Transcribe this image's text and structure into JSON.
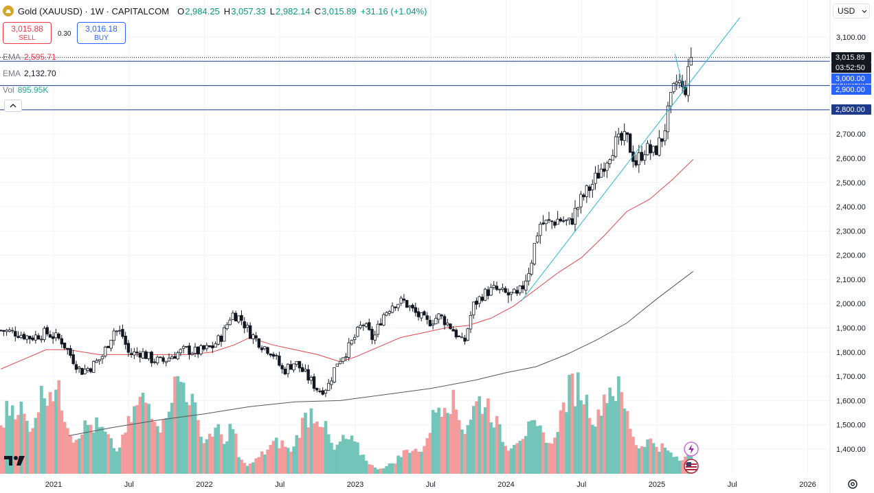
{
  "header": {
    "symbol": "Gold (XAUUSD) · 1W · CAPITALCOM",
    "open_label": "O",
    "open": "2,984.25",
    "high_label": "H",
    "high": "3,057.33",
    "low_label": "L",
    "low": "2,982.14",
    "close_label": "C",
    "close": "3,015.89",
    "change": "+31.16 (+1.04%)"
  },
  "trade": {
    "sell_price": "3,015.88",
    "sell_label": "SELL",
    "spread": "0.30",
    "buy_price": "3,016.18",
    "buy_label": "BUY"
  },
  "indicators": [
    {
      "name": "EMA",
      "value": "2,595.71",
      "color": "#f23645"
    },
    {
      "name": "EMA",
      "value": "2,132.70",
      "color": "#131722"
    },
    {
      "name": "Vol",
      "value": "895.95K",
      "color": "#22ab94"
    }
  ],
  "currency": {
    "label": "USD"
  },
  "price_tags": [
    {
      "text": "3,015.89",
      "bg": "#131722"
    },
    {
      "text": "03:52:50",
      "bg": "#131722"
    },
    {
      "text": "3,000.00",
      "bg": "#2962ff"
    },
    {
      "text": "2,900.00",
      "bg": "#2962ff"
    },
    {
      "text": "2,800.00",
      "bg": "#1e3a8a"
    }
  ],
  "colors": {
    "up": "#131722",
    "down": "#131722",
    "ema_fast": "#e0454b",
    "ema_slow": "#555555",
    "vol_up": "#72c5b8",
    "vol_down": "#f49b9b",
    "trendline": "#29b6d6",
    "hline": "#1e3a8a"
  },
  "chart_data": {
    "type": "candlestick",
    "title": "Gold (XAUUSD) · 1W · CAPITALCOM",
    "y_axis_ticks": [
      "3,100.00",
      "3,000.00",
      "2,900.00",
      "2,800.00",
      "2,700.00",
      "2,600.00",
      "2,500.00",
      "2,400.00",
      "2,300.00",
      "2,200.00",
      "2,100.00",
      "2,000.00",
      "1,900.00",
      "1,800.00",
      "1,700.00",
      "1,600.00",
      "1,500.00",
      "1,400.00"
    ],
    "y_tick_values": [
      3100,
      3000,
      2900,
      2800,
      2700,
      2600,
      2500,
      2400,
      2300,
      2200,
      2100,
      2000,
      1900,
      1800,
      1700,
      1600,
      1500,
      1400
    ],
    "x_axis_ticks": [
      "2021",
      "Jul",
      "2022",
      "Jul",
      "2023",
      "Jul",
      "2024",
      "Jul",
      "2025",
      "Jul",
      "2026"
    ],
    "x_tick_years": [
      2021.0,
      2021.5,
      2022.0,
      2022.5,
      2023.0,
      2023.5,
      2024.0,
      2024.5,
      2025.0,
      2025.5,
      2026.0
    ],
    "ylim": [
      1380,
      3120
    ],
    "xlim": [
      2020.65,
      2026.4
    ],
    "horizontal_levels": [
      2800,
      2900,
      3000
    ],
    "current_price": 3015.89,
    "price_path": [
      [
        2020.65,
        1890
      ],
      [
        2020.75,
        1880
      ],
      [
        2020.85,
        1860
      ],
      [
        2020.95,
        1880
      ],
      [
        2021.05,
        1850
      ],
      [
        2021.12,
        1780
      ],
      [
        2021.18,
        1720
      ],
      [
        2021.25,
        1740
      ],
      [
        2021.32,
        1780
      ],
      [
        2021.4,
        1890
      ],
      [
        2021.45,
        1880
      ],
      [
        2021.5,
        1790
      ],
      [
        2021.58,
        1800
      ],
      [
        2021.65,
        1770
      ],
      [
        2021.72,
        1760
      ],
      [
        2021.8,
        1790
      ],
      [
        2021.88,
        1810
      ],
      [
        2021.95,
        1800
      ],
      [
        2022.05,
        1820
      ],
      [
        2022.12,
        1870
      ],
      [
        2022.18,
        1960
      ],
      [
        2022.24,
        1940
      ],
      [
        2022.3,
        1880
      ],
      [
        2022.38,
        1830
      ],
      [
        2022.45,
        1800
      ],
      [
        2022.52,
        1720
      ],
      [
        2022.6,
        1760
      ],
      [
        2022.68,
        1700
      ],
      [
        2022.76,
        1640
      ],
      [
        2022.82,
        1660
      ],
      [
        2022.88,
        1760
      ],
      [
        2022.95,
        1810
      ],
      [
        2023.05,
        1920
      ],
      [
        2023.12,
        1850
      ],
      [
        2023.18,
        1950
      ],
      [
        2023.25,
        2000
      ],
      [
        2023.32,
        2010
      ],
      [
        2023.4,
        1960
      ],
      [
        2023.48,
        1920
      ],
      [
        2023.56,
        1950
      ],
      [
        2023.64,
        1900
      ],
      [
        2023.72,
        1830
      ],
      [
        2023.78,
        1990
      ],
      [
        2023.85,
        2040
      ],
      [
        2023.92,
        2060
      ],
      [
        2024.0,
        2040
      ],
      [
        2024.08,
        2020
      ],
      [
        2024.16,
        2160
      ],
      [
        2024.22,
        2330
      ],
      [
        2024.28,
        2330
      ],
      [
        2024.35,
        2350
      ],
      [
        2024.42,
        2330
      ],
      [
        2024.5,
        2430
      ],
      [
        2024.58,
        2500
      ],
      [
        2024.65,
        2580
      ],
      [
        2024.72,
        2660
      ],
      [
        2024.8,
        2680
      ],
      [
        2024.86,
        2580
      ],
      [
        2024.92,
        2640
      ],
      [
        2024.98,
        2620
      ],
      [
        2025.04,
        2690
      ],
      [
        2025.1,
        2860
      ],
      [
        2025.14,
        2930
      ],
      [
        2025.18,
        2860
      ],
      [
        2025.22,
        2990
      ],
      [
        2025.24,
        3016
      ]
    ],
    "ema_fast_path": [
      [
        2020.65,
        1730
      ],
      [
        2020.8,
        1770
      ],
      [
        2020.95,
        1810
      ],
      [
        2021.1,
        1810
      ],
      [
        2021.3,
        1790
      ],
      [
        2021.5,
        1790
      ],
      [
        2021.7,
        1790
      ],
      [
        2021.9,
        1790
      ],
      [
        2022.05,
        1800
      ],
      [
        2022.2,
        1830
      ],
      [
        2022.3,
        1860
      ],
      [
        2022.45,
        1830
      ],
      [
        2022.6,
        1810
      ],
      [
        2022.75,
        1790
      ],
      [
        2022.9,
        1760
      ],
      [
        2023.0,
        1780
      ],
      [
        2023.15,
        1820
      ],
      [
        2023.3,
        1860
      ],
      [
        2023.45,
        1880
      ],
      [
        2023.6,
        1900
      ],
      [
        2023.75,
        1910
      ],
      [
        2023.9,
        1940
      ],
      [
        2024.05,
        1990
      ],
      [
        2024.2,
        2060
      ],
      [
        2024.35,
        2130
      ],
      [
        2024.5,
        2190
      ],
      [
        2024.65,
        2280
      ],
      [
        2024.8,
        2380
      ],
      [
        2024.95,
        2430
      ],
      [
        2025.1,
        2510
      ],
      [
        2025.24,
        2595
      ]
    ],
    "ema_slow_path": [
      [
        2021.1,
        1455
      ],
      [
        2021.4,
        1490
      ],
      [
        2021.7,
        1520
      ],
      [
        2022.0,
        1545
      ],
      [
        2022.3,
        1575
      ],
      [
        2022.6,
        1595
      ],
      [
        2022.9,
        1600
      ],
      [
        2023.2,
        1625
      ],
      [
        2023.5,
        1650
      ],
      [
        2023.8,
        1685
      ],
      [
        2024.0,
        1715
      ],
      [
        2024.2,
        1740
      ],
      [
        2024.4,
        1790
      ],
      [
        2024.6,
        1850
      ],
      [
        2024.8,
        1920
      ],
      [
        2025.0,
        2020
      ],
      [
        2025.24,
        2133
      ]
    ],
    "trendlines": [
      {
        "from": [
          2024.1,
          2010
        ],
        "to": [
          2025.55,
          3180
        ]
      },
      {
        "from": [
          2025.12,
          3030
        ],
        "to": [
          2025.18,
          2880
        ]
      }
    ],
    "volume_last": "895.95K"
  }
}
